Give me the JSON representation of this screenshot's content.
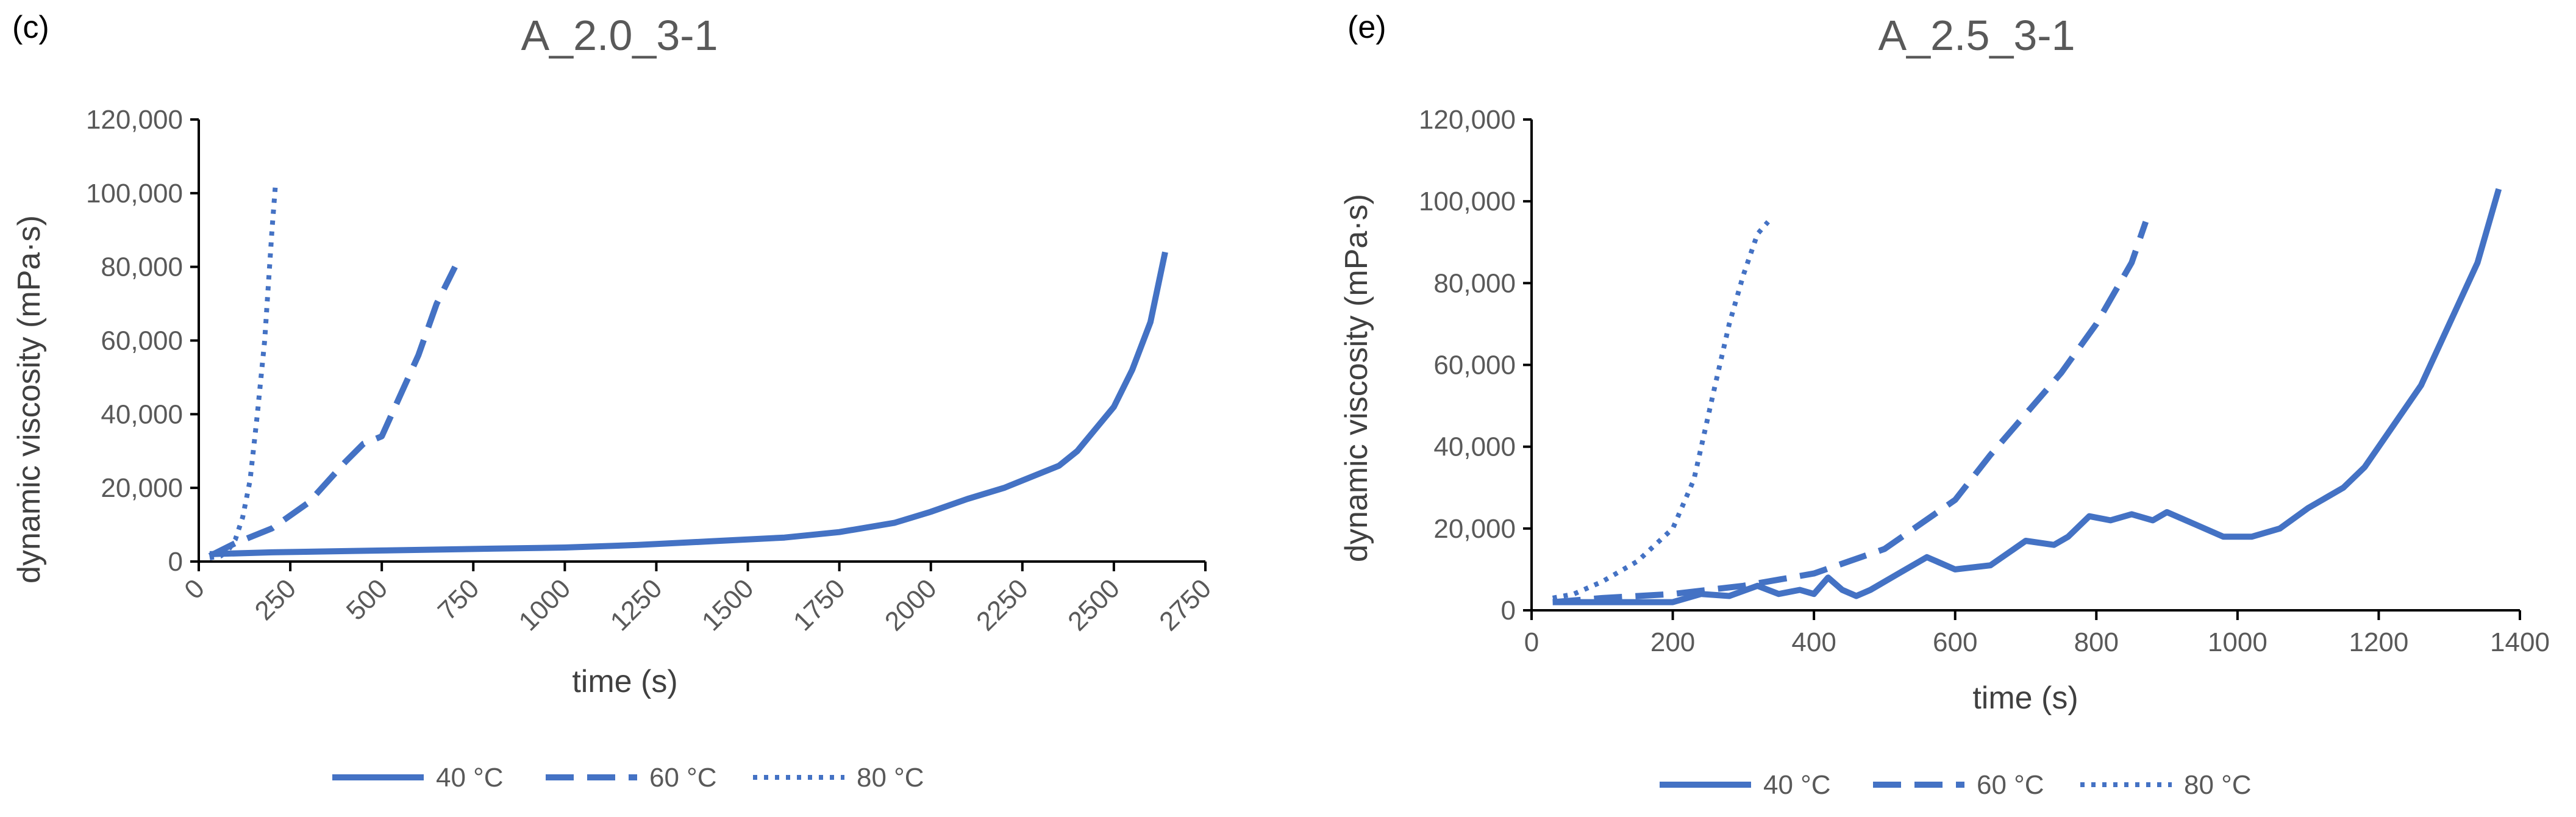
{
  "colors": {
    "series": "#4472c4",
    "axis": "#000000",
    "text": "#595959"
  },
  "chart_data": [
    {
      "type": "line",
      "panel_label": "(c)",
      "title": "A_2.0_3-1",
      "xlabel": "time (s)",
      "ylabel": "dynamic viscosity (mPa·s)",
      "xlim": [
        0,
        2750
      ],
      "ylim": [
        0,
        120000
      ],
      "xticks": [
        0,
        250,
        500,
        750,
        1000,
        1250,
        1500,
        1750,
        2000,
        2250,
        2500,
        2750
      ],
      "xtick_labels": [
        "0",
        "250",
        "500",
        "750",
        "1000",
        "1250",
        "1500",
        "1750",
        "2000",
        "2250",
        "2500",
        "2750"
      ],
      "yticks": [
        0,
        20000,
        40000,
        60000,
        80000,
        100000,
        120000
      ],
      "ytick_labels": [
        "0",
        "20,000",
        "40,000",
        "60,000",
        "80,000",
        "100,000",
        "120,000"
      ],
      "xtick_rotation": -45,
      "legend": [
        "40 °C",
        "60 °C",
        "80 °C"
      ],
      "series": [
        {
          "name": "40 °C",
          "style": "solid",
          "x": [
            30,
            200,
            500,
            800,
            1000,
            1200,
            1400,
            1600,
            1750,
            1900,
            2000,
            2100,
            2200,
            2300,
            2350,
            2400,
            2450,
            2500,
            2550,
            2600,
            2640
          ],
          "y": [
            2000,
            2500,
            3000,
            3500,
            3800,
            4500,
            5500,
            6500,
            8000,
            10500,
            13500,
            17000,
            20000,
            24000,
            26000,
            30000,
            36000,
            42000,
            52000,
            65000,
            84000
          ]
        },
        {
          "name": "60 °C",
          "style": "dashed",
          "x": [
            30,
            100,
            200,
            300,
            400,
            450,
            500,
            550,
            600,
            650,
            700
          ],
          "y": [
            1500,
            5000,
            9000,
            16000,
            27000,
            32000,
            34000,
            45000,
            56000,
            70000,
            80000
          ]
        },
        {
          "name": "80 °C",
          "style": "dotted",
          "x": [
            30,
            60,
            80,
            100,
            120,
            140,
            160,
            180,
            190,
            200,
            210
          ],
          "y": [
            1000,
            1500,
            3000,
            6000,
            12000,
            22000,
            40000,
            60000,
            75000,
            90000,
            103000
          ]
        }
      ]
    },
    {
      "type": "line",
      "panel_label": "(e)",
      "title": "A_2.5_3-1",
      "xlabel": "time (s)",
      "ylabel": "dynamic viscosity (mPa·s)",
      "xlim": [
        0,
        1400
      ],
      "ylim": [
        0,
        120000
      ],
      "xticks": [
        0,
        200,
        400,
        600,
        800,
        1000,
        1200,
        1400
      ],
      "xtick_labels": [
        "0",
        "200",
        "400",
        "600",
        "800",
        "1000",
        "1200",
        "1400"
      ],
      "yticks": [
        0,
        20000,
        40000,
        60000,
        80000,
        100000,
        120000
      ],
      "ytick_labels": [
        "0",
        "20,000",
        "40,000",
        "60,000",
        "80,000",
        "100,000",
        "120,000"
      ],
      "xtick_rotation": 0,
      "legend": [
        "40 °C",
        "60 °C",
        "80 °C"
      ],
      "series": [
        {
          "name": "40 °C",
          "style": "solid",
          "x": [
            30,
            100,
            200,
            240,
            280,
            320,
            350,
            380,
            400,
            420,
            440,
            460,
            480,
            520,
            560,
            600,
            650,
            700,
            740,
            760,
            790,
            820,
            850,
            880,
            900,
            940,
            980,
            1020,
            1060,
            1100,
            1150,
            1180,
            1220,
            1260,
            1300,
            1340,
            1370
          ],
          "y": [
            2000,
            2000,
            2000,
            4000,
            3500,
            6000,
            4000,
            5000,
            4000,
            8000,
            5000,
            3500,
            5000,
            9000,
            13000,
            10000,
            11000,
            17000,
            16000,
            18000,
            23000,
            22000,
            23500,
            22000,
            24000,
            21000,
            18000,
            18000,
            20000,
            25000,
            30000,
            35000,
            45000,
            55000,
            70000,
            85000,
            103000
          ]
        },
        {
          "name": "60 °C",
          "style": "dashed",
          "x": [
            30,
            100,
            200,
            300,
            400,
            500,
            600,
            650,
            700,
            750,
            800,
            850,
            870
          ],
          "y": [
            2000,
            3000,
            4000,
            6000,
            9000,
            15000,
            27000,
            38000,
            48000,
            58000,
            70000,
            85000,
            95000
          ]
        },
        {
          "name": "80 °C",
          "style": "dotted",
          "x": [
            30,
            60,
            100,
            150,
            200,
            230,
            260,
            280,
            300,
            320,
            335
          ],
          "y": [
            3000,
            4000,
            7000,
            12000,
            20000,
            32000,
            55000,
            70000,
            82000,
            92000,
            95000
          ]
        }
      ]
    }
  ]
}
